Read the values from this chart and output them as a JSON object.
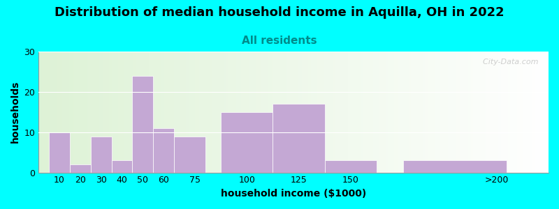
{
  "title": "Distribution of median household income in Aquilla, OH in 2022",
  "subtitle": "All residents",
  "xlabel": "household income ($1000)",
  "ylabel": "households",
  "bg_color": "#00FFFF",
  "bar_color": "#C4A8D4",
  "subtitle_color": "#008B8B",
  "categories": [
    "10",
    "20",
    "30",
    "40",
    "50",
    "60",
    "75",
    "100",
    "125",
    "150",
    ">200"
  ],
  "left_edges": [
    5,
    15,
    25,
    35,
    45,
    55,
    65,
    87.5,
    112.5,
    137.5,
    175
  ],
  "widths": [
    10,
    10,
    10,
    10,
    10,
    10,
    15,
    25,
    25,
    25,
    50
  ],
  "tick_positions": [
    10,
    20,
    30,
    40,
    50,
    60,
    75,
    100,
    125,
    150,
    220
  ],
  "values": [
    10,
    2,
    9,
    3,
    24,
    11,
    9,
    15,
    17,
    3,
    3
  ],
  "ylim": [
    0,
    30
  ],
  "xlim": [
    0,
    245
  ],
  "yticks": [
    0,
    10,
    20,
    30
  ],
  "title_fontsize": 13,
  "subtitle_fontsize": 11,
  "axis_label_fontsize": 10,
  "tick_fontsize": 9,
  "watermark": "  City-Data.com"
}
